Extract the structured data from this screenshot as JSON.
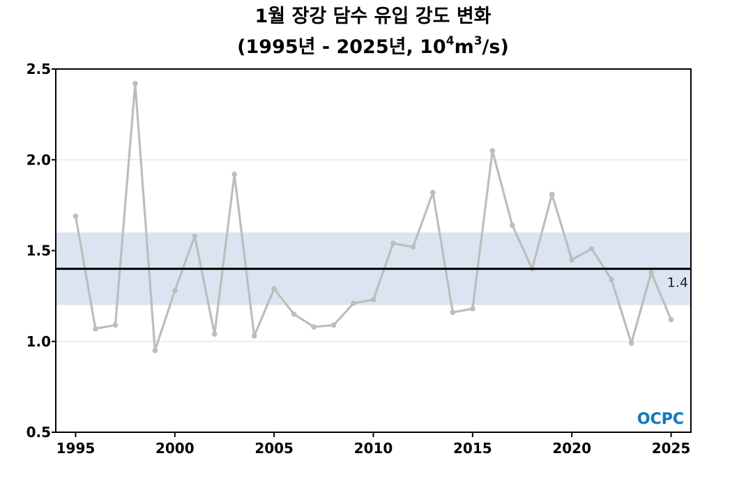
{
  "chart_data": {
    "type": "line",
    "title_line1": "1월 장강 담수 유입 강도 변화",
    "title_line2_prefix": "(1995년 - 2025년, 10",
    "title_line2_sup1": "4",
    "title_line2_mid": "m",
    "title_line2_sup2": "3",
    "title_line2_suffix": "/s)",
    "xlabel": "",
    "ylabel": "",
    "x": [
      1995,
      1996,
      1997,
      1998,
      1999,
      2000,
      2001,
      2002,
      2003,
      2004,
      2005,
      2006,
      2007,
      2008,
      2009,
      2010,
      2011,
      2012,
      2013,
      2014,
      2015,
      2016,
      2017,
      2018,
      2019,
      2020,
      2021,
      2022,
      2023,
      2024,
      2025
    ],
    "series": [
      {
        "values": [
          1.69,
          1.07,
          1.09,
          2.42,
          0.95,
          1.28,
          1.58,
          1.04,
          1.92,
          1.03,
          1.29,
          1.15,
          1.08,
          1.09,
          1.21,
          1.23,
          1.54,
          1.52,
          1.82,
          1.16,
          1.18,
          2.05,
          1.64,
          1.4,
          1.81,
          1.45,
          1.51,
          1.34,
          0.99,
          1.38,
          1.12
        ],
        "color": "#bdbdbd"
      }
    ],
    "mean": 1.4,
    "mean_label": "1.4",
    "mean_color": "#000000",
    "band": [
      1.2,
      1.6
    ],
    "band_color": "#dbe5f1",
    "xlim": [
      1994.0,
      2026.0
    ],
    "ylim": [
      0.5,
      2.5
    ],
    "xticks": [
      1995,
      2000,
      2005,
      2010,
      2015,
      2020,
      2025
    ],
    "xtick_labels": [
      "1995",
      "2000",
      "2005",
      "2010",
      "2015",
      "2020",
      "2025"
    ],
    "yticks": [
      0.5,
      1.0,
      1.5,
      2.0,
      2.5
    ],
    "ytick_labels": [
      "0.5",
      "1.0",
      "1.5",
      "2.0",
      "2.5"
    ],
    "grid": true,
    "grid_color": "#e2e2e2",
    "logo_text": "OCPC",
    "logo_colors": [
      "#1f6fb2",
      "#4fc3e8"
    ]
  }
}
